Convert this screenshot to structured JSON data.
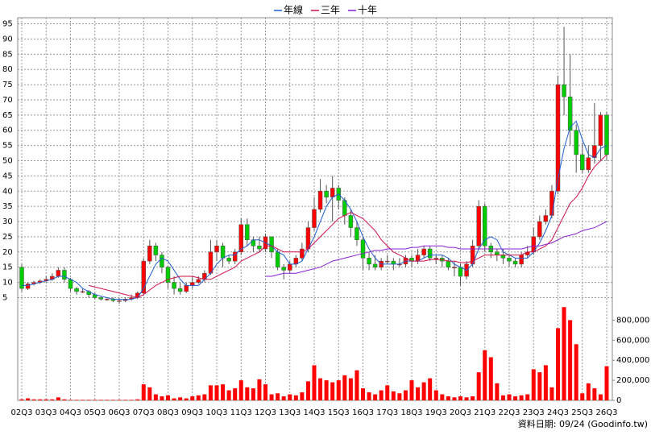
{
  "chart_data": [
    {
      "type": "candlestick",
      "legend": "top",
      "up_color": "#ff0000",
      "down_color": "#00cc00",
      "categories": [
        "02Q3",
        null,
        null,
        null,
        "03Q3",
        null,
        null,
        null,
        "04Q3",
        null,
        null,
        null,
        "05Q3",
        null,
        null,
        null,
        "06Q3",
        null,
        null,
        null,
        "07Q3",
        null,
        null,
        null,
        "08Q3",
        null,
        null,
        null,
        "09Q3",
        null,
        null,
        null,
        "10Q3",
        null,
        null,
        null,
        "11Q3",
        null,
        null,
        null,
        "12Q3",
        null,
        null,
        null,
        "13Q3",
        null,
        null,
        null,
        "14Q3",
        null,
        null,
        null,
        "15Q3",
        null,
        null,
        null,
        "16Q3",
        null,
        null,
        null,
        "17Q3",
        null,
        null,
        null,
        "18Q3",
        null,
        null,
        null,
        "19Q3",
        null,
        null,
        null,
        "20Q3",
        null,
        null,
        null,
        "21Q3",
        null,
        null,
        null,
        "22Q3",
        null,
        null,
        null,
        "23Q3",
        null,
        null,
        null,
        "24Q3",
        null,
        null,
        null,
        "25Q3",
        null,
        null,
        null,
        "26Q3"
      ],
      "open": [
        15,
        8,
        9.5,
        10,
        10.5,
        11,
        12,
        14,
        11,
        8,
        7,
        7,
        6,
        5,
        4.5,
        4.5,
        4,
        4,
        4.5,
        5,
        6.5,
        17,
        22,
        19,
        15,
        10,
        8,
        7,
        9,
        10,
        11,
        13,
        20,
        22,
        18,
        17,
        20,
        29,
        24,
        22,
        21,
        25,
        20,
        15,
        14,
        16,
        18,
        21,
        28,
        34,
        40,
        38,
        41,
        37,
        32,
        28,
        24,
        18,
        16,
        15,
        17,
        17,
        16,
        16,
        18,
        17,
        19,
        21,
        18,
        18,
        17,
        15,
        15,
        12,
        16,
        22,
        35,
        22,
        20,
        19,
        18,
        17,
        16,
        19,
        20,
        25,
        30,
        32,
        40,
        75,
        71,
        60,
        52,
        47,
        51,
        55,
        65
      ],
      "high": [
        16,
        10,
        10.5,
        11,
        12,
        13,
        15,
        15,
        11.5,
        8.5,
        8,
        7.5,
        6.5,
        5.5,
        5,
        5,
        5,
        5,
        6,
        7,
        18,
        24,
        23,
        20,
        15.5,
        12,
        10,
        10,
        12,
        12,
        14,
        24,
        24,
        23,
        19,
        21,
        31,
        31,
        25,
        25,
        26,
        25,
        21,
        16,
        17,
        19,
        23,
        30,
        38,
        44,
        42,
        45,
        42,
        38,
        34,
        30,
        25,
        20,
        19,
        18,
        19,
        18,
        18,
        19,
        19,
        21,
        22,
        22,
        19,
        19,
        18,
        17,
        16,
        17,
        24,
        37,
        36,
        23,
        21,
        21,
        19,
        18,
        20,
        22,
        28,
        32,
        34,
        42,
        78,
        94,
        85,
        62,
        56,
        55,
        69,
        66,
        66
      ],
      "low": [
        7,
        7.5,
        9,
        9.5,
        10,
        10.5,
        11.5,
        10,
        7,
        6,
        6.5,
        5,
        4.5,
        4,
        4,
        3.5,
        3,
        3.5,
        4,
        4.5,
        6,
        16,
        17,
        13,
        8,
        6,
        6,
        6.5,
        8,
        9.5,
        10,
        12.5,
        17,
        15,
        16,
        16,
        19,
        22,
        20,
        20,
        20,
        18,
        14,
        11,
        13,
        15,
        17,
        20,
        27,
        33,
        36,
        30,
        34,
        29,
        25,
        22,
        14,
        14,
        14,
        14,
        16,
        14,
        15,
        15,
        15,
        16,
        18,
        17,
        16,
        15,
        14,
        12,
        9,
        11,
        15,
        21,
        20,
        18,
        17,
        16,
        15,
        15,
        15,
        18,
        19,
        24,
        29,
        31,
        39,
        65,
        55,
        46,
        46,
        46,
        49,
        50,
        50
      ],
      "close": [
        8,
        9.5,
        10,
        10.5,
        11,
        12,
        14,
        11,
        8,
        7,
        7,
        6,
        5,
        4.5,
        4.5,
        4,
        4,
        4.5,
        5,
        6.5,
        17,
        22,
        19,
        15,
        10,
        8,
        7,
        9,
        10,
        11,
        13,
        20,
        22,
        18,
        17,
        20,
        29,
        24,
        22,
        21,
        25,
        20,
        15,
        14,
        16,
        18,
        21,
        28,
        34,
        40,
        38,
        41,
        37,
        32,
        28,
        24,
        18,
        16,
        15,
        17,
        17,
        16,
        16,
        18,
        17,
        19,
        21,
        18,
        18,
        17,
        15,
        15,
        12,
        16,
        22,
        35,
        22,
        20,
        19,
        18,
        17,
        16,
        19,
        20,
        25,
        30,
        32,
        40,
        75,
        71,
        60,
        52,
        47,
        51,
        55,
        65,
        52
      ],
      "series": [
        {
          "name": "年線",
          "color": "#1f5fd0",
          "values": [
            9,
            9,
            9.5,
            10,
            10.5,
            11,
            12,
            12,
            11,
            10,
            8,
            7,
            6,
            5.5,
            5,
            4.5,
            4.5,
            4.3,
            4.5,
            5,
            8,
            12,
            16,
            18,
            17,
            14,
            11,
            9,
            9,
            9,
            11,
            13,
            16,
            18,
            19,
            19,
            21,
            22,
            24,
            24,
            23,
            22,
            20,
            19,
            16,
            16,
            17,
            21,
            25,
            30,
            35,
            38,
            39,
            37,
            34,
            30,
            25,
            21,
            18,
            16,
            16,
            16,
            16,
            17,
            17,
            17,
            18,
            19,
            19,
            19,
            18,
            16,
            15,
            14,
            16,
            21,
            24,
            25,
            24,
            20,
            19,
            18,
            18,
            18,
            20,
            23,
            27,
            32,
            44,
            54,
            61,
            63,
            57,
            52,
            51,
            54,
            55
          ]
        },
        {
          "name": "三年",
          "color": "#d0104a",
          "values": [
            null,
            null,
            null,
            null,
            null,
            null,
            null,
            null,
            null,
            null,
            null,
            9,
            8.5,
            8,
            7.5,
            7,
            6.5,
            6,
            5.5,
            5,
            6,
            7.5,
            9,
            10,
            11,
            11.5,
            12,
            12,
            12,
            11.5,
            11,
            11,
            12,
            13,
            14,
            15,
            17,
            18,
            19,
            20,
            22,
            22,
            21,
            20,
            20,
            20,
            20,
            21,
            23,
            25,
            27,
            29,
            31,
            32,
            33,
            32,
            31,
            29,
            27,
            24,
            22,
            20,
            19,
            18,
            17,
            17,
            17,
            17.5,
            17.5,
            17.5,
            17,
            17,
            16.5,
            16.5,
            17,
            18,
            19,
            19,
            19,
            19,
            19,
            19,
            19,
            20,
            20,
            21,
            22,
            24,
            28,
            32,
            36,
            38,
            41,
            45,
            48,
            50,
            52
          ]
        },
        {
          "name": "十年",
          "color": "#8a1fd0",
          "values": [
            null,
            null,
            null,
            null,
            null,
            null,
            null,
            null,
            null,
            null,
            null,
            null,
            null,
            null,
            null,
            null,
            null,
            null,
            null,
            null,
            null,
            null,
            null,
            null,
            null,
            null,
            null,
            null,
            null,
            null,
            null,
            null,
            null,
            null,
            null,
            null,
            null,
            null,
            null,
            null,
            12,
            12,
            12.5,
            13,
            13,
            13,
            13.5,
            14,
            14.5,
            15,
            16,
            17,
            17.5,
            18,
            18.5,
            19,
            19.5,
            20,
            20.5,
            20.5,
            21,
            21,
            21,
            21,
            21.5,
            21.5,
            22,
            22,
            22,
            22,
            21.5,
            21.5,
            21,
            21,
            21,
            21,
            21,
            21,
            21,
            21,
            21,
            21,
            21,
            21.5,
            22,
            22,
            22.5,
            23,
            24,
            25,
            25.5,
            26,
            27,
            27.5,
            28,
            29,
            30
          ]
        }
      ],
      "ylim": [
        3,
        97
      ],
      "yticks": [
        5,
        10,
        15,
        20,
        25,
        30,
        35,
        40,
        45,
        50,
        55,
        60,
        65,
        70,
        75,
        80,
        85,
        90,
        95
      ],
      "grid": true
    },
    {
      "type": "bar",
      "color": "#ff0000",
      "values": [
        10000,
        20000,
        10000,
        10000,
        10000,
        10000,
        30000,
        10000,
        5000,
        5000,
        5000,
        5000,
        5000,
        5000,
        5000,
        5000,
        5000,
        5000,
        5000,
        10000,
        160000,
        130000,
        60000,
        40000,
        50000,
        20000,
        30000,
        20000,
        40000,
        50000,
        60000,
        150000,
        150000,
        160000,
        100000,
        120000,
        200000,
        130000,
        120000,
        210000,
        160000,
        60000,
        70000,
        40000,
        60000,
        50000,
        80000,
        190000,
        350000,
        220000,
        200000,
        180000,
        200000,
        250000,
        220000,
        300000,
        120000,
        80000,
        60000,
        100000,
        150000,
        90000,
        70000,
        100000,
        200000,
        130000,
        180000,
        220000,
        100000,
        60000,
        40000,
        30000,
        40000,
        30000,
        40000,
        280000,
        500000,
        430000,
        170000,
        50000,
        60000,
        40000,
        50000,
        60000,
        310000,
        280000,
        350000,
        130000,
        720000,
        930000,
        800000,
        560000,
        70000,
        170000,
        120000,
        60000,
        340000
      ],
      "ylim": [
        0,
        940000
      ],
      "yticks": [
        0,
        {
          "value": 200000,
          "label": "200,000"
        },
        {
          "value": 400000,
          "label": "400,000"
        },
        {
          "value": 600000,
          "label": "600,000"
        },
        {
          "value": 800000,
          "label": "800,000"
        }
      ]
    }
  ],
  "footnote": "資料日期: 09/24 (Goodinfo.tw)"
}
